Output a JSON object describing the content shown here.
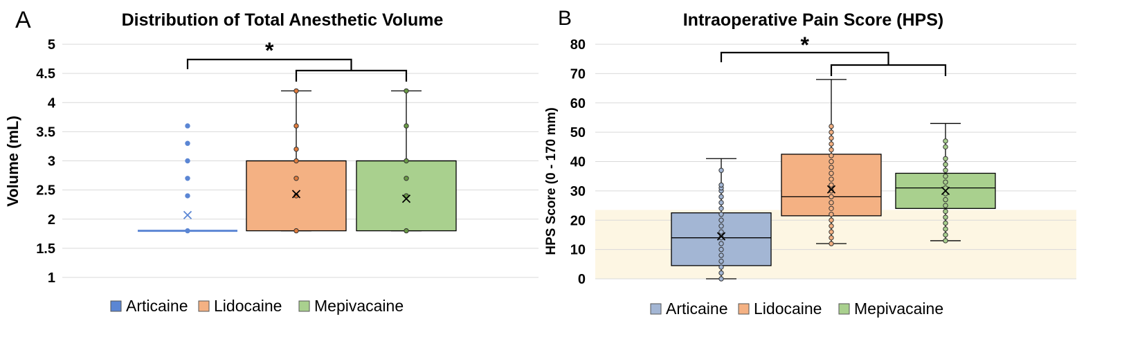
{
  "colors": {
    "articaine": "#5b86d4",
    "articaine_box": "#a3b6d4",
    "lidocaine": "#f4b183",
    "lidocaine_dot": "#e07b3c",
    "mepivacaine": "#a9d08e",
    "mepivacaine_dot": "#6a9a45",
    "grid": "#d9d9d9",
    "shade": "#fdf6e3",
    "bracket": "#000000"
  },
  "chart_data": [
    {
      "type": "box",
      "panel_label": "A",
      "title": "Distribution of Total Anesthetic Volume",
      "xlabel": "",
      "ylabel": "Volume (mL)",
      "ylim": [
        1,
        5
      ],
      "yticks": [
        "1",
        "1.5",
        "2",
        "2.5",
        "3",
        "3.5",
        "4",
        "4.5",
        "5"
      ],
      "grid": true,
      "legend": {
        "position": "bottom",
        "entries": [
          "Articaine",
          "Lidocaine",
          "Mepivacaine"
        ]
      },
      "significance": {
        "label": "*",
        "compare": "Articaine vs Lidocaine & Mepivacaine"
      },
      "series": [
        {
          "name": "Articaine",
          "q1": 1.8,
          "median": 1.8,
          "q3": 1.8,
          "whisker_low": 1.8,
          "whisker_high": 1.8,
          "mean": 2.07,
          "points": [
            1.8,
            2.4,
            2.7,
            3.0,
            3.3,
            3.6
          ],
          "outliers": true
        },
        {
          "name": "Lidocaine",
          "q1": 1.8,
          "median": 3.0,
          "q3": 3.0,
          "whisker_low": 1.8,
          "whisker_high": 4.2,
          "mean": 2.43,
          "points": [
            1.8,
            2.4,
            2.7,
            3.0,
            3.2,
            3.6,
            4.2
          ],
          "outliers": false
        },
        {
          "name": "Mepivacaine",
          "q1": 1.8,
          "median": 3.0,
          "q3": 3.0,
          "whisker_low": 1.8,
          "whisker_high": 4.2,
          "mean": 2.35,
          "points": [
            1.8,
            2.4,
            2.7,
            3.0,
            3.6,
            4.2
          ],
          "outliers": false
        }
      ]
    },
    {
      "type": "box",
      "panel_label": "B",
      "title": "Intraoperative Pain Score (HPS)",
      "xlabel": "",
      "ylabel": "HPS Score (0 - 170 mm)",
      "ylim": [
        0,
        80
      ],
      "yticks": [
        "0",
        "10",
        "20",
        "30",
        "40",
        "50",
        "60",
        "70",
        "80"
      ],
      "shaded_band": [
        0,
        23.5
      ],
      "grid": true,
      "legend": {
        "position": "bottom",
        "entries": [
          "Articaine",
          "Lidocaine",
          "Mepivacaine"
        ]
      },
      "significance": {
        "label": "*",
        "compare": "Articaine vs Lidocaine & Mepivacaine"
      },
      "series": [
        {
          "name": "Articaine",
          "q1": 4.5,
          "median": 14,
          "q3": 22.5,
          "whisker_low": 0,
          "whisker_high": 41,
          "mean": 14.5,
          "points": [
            0,
            2,
            4,
            6,
            8,
            10,
            12,
            14,
            16,
            18,
            20,
            22,
            24,
            26,
            28,
            30,
            31,
            32,
            37
          ]
        },
        {
          "name": "Lidocaine",
          "q1": 21.5,
          "median": 28,
          "q3": 42.5,
          "whisker_low": 12,
          "whisker_high": 68,
          "mean": 30.5,
          "points": [
            12,
            14,
            16,
            18,
            20,
            22,
            24,
            26,
            28,
            30,
            32,
            34,
            36,
            38,
            40,
            42,
            44,
            46,
            48,
            50,
            52
          ]
        },
        {
          "name": "Mepivacaine",
          "q1": 24,
          "median": 31,
          "q3": 36,
          "whisker_low": 13,
          "whisker_high": 53,
          "mean": 30,
          "points": [
            13,
            15,
            17,
            19,
            21,
            23,
            25,
            27,
            29,
            31,
            33,
            35,
            37,
            39,
            41,
            45,
            47
          ]
        }
      ]
    }
  ]
}
